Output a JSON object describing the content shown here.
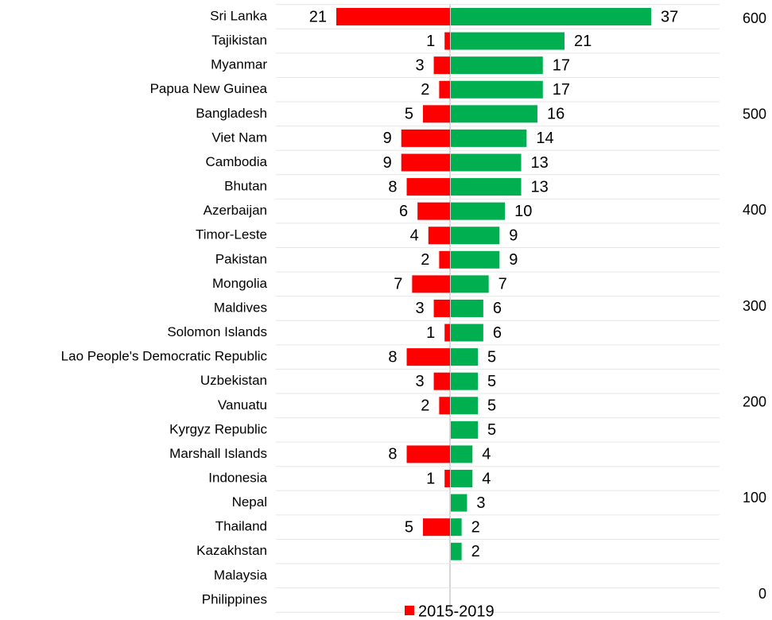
{
  "chart_data": {
    "type": "diverging-bar",
    "categories": [
      "Sri Lanka",
      "Tajikistan",
      "Myanmar",
      "Papua New Guinea",
      "Bangladesh",
      "Viet Nam",
      "Cambodia",
      "Bhutan",
      "Azerbaijan",
      "Timor-Leste",
      "Pakistan",
      "Mongolia",
      "Maldives",
      "Solomon Islands",
      "Lao People's Democratic Republic",
      "Uzbekistan",
      "Vanuatu",
      "Kyrgyz Republic",
      "Marshall Islands",
      "Indonesia",
      "Nepal",
      "Thailand",
      "Kazakhstan",
      "Malaysia",
      "Philippines"
    ],
    "series": [
      {
        "name": "2015-2019",
        "color": "#ff0000",
        "side": "left",
        "values": [
          21,
          1,
          3,
          2,
          5,
          9,
          9,
          8,
          6,
          4,
          2,
          7,
          3,
          1,
          8,
          3,
          2,
          null,
          8,
          1,
          null,
          5,
          null,
          null,
          null
        ]
      },
      {
        "color": "#00b050",
        "side": "right",
        "values": [
          37,
          21,
          17,
          17,
          16,
          14,
          13,
          13,
          10,
          9,
          9,
          7,
          6,
          6,
          5,
          5,
          5,
          5,
          4,
          4,
          3,
          2,
          2,
          null,
          null
        ]
      }
    ],
    "y2lim": [
      0,
      600
    ],
    "y2ticks": [
      0,
      100,
      200,
      300,
      400,
      500,
      600
    ],
    "legend": "bottom"
  }
}
